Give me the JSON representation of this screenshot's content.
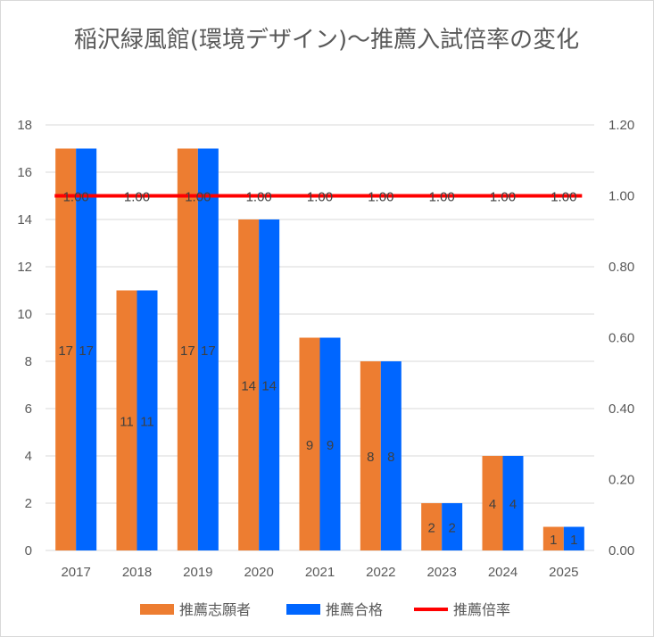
{
  "chart_data": {
    "type": "bar",
    "title": "稲沢緑風館(環境デザイン)～推薦入試倍率の変化",
    "categories": [
      "2017",
      "2018",
      "2019",
      "2020",
      "2021",
      "2022",
      "2023",
      "2024",
      "2025"
    ],
    "series": [
      {
        "name": "推薦志願者",
        "type": "bar",
        "axis": "left",
        "color": "#ED7D31",
        "values": [
          17,
          11,
          17,
          14,
          9,
          8,
          2,
          4,
          1
        ]
      },
      {
        "name": "推薦合格",
        "type": "bar",
        "axis": "left",
        "color": "#0066FF",
        "values": [
          17,
          11,
          17,
          14,
          9,
          8,
          2,
          4,
          1
        ]
      },
      {
        "name": "推薦倍率",
        "type": "line",
        "axis": "right",
        "color": "#FF0000",
        "values": [
          1.0,
          1.0,
          1.0,
          1.0,
          1.0,
          1.0,
          1.0,
          1.0,
          1.0
        ]
      }
    ],
    "ylim": [
      0,
      18
    ],
    "yticks": [
      0,
      2,
      4,
      6,
      8,
      10,
      12,
      14,
      16,
      18
    ],
    "y2lim": [
      0,
      1.2
    ],
    "y2ticks": [
      "0.00",
      "0.20",
      "0.40",
      "0.60",
      "0.80",
      "1.00",
      "1.20"
    ],
    "grid": true,
    "data_labels": true,
    "legend": "bottom"
  }
}
